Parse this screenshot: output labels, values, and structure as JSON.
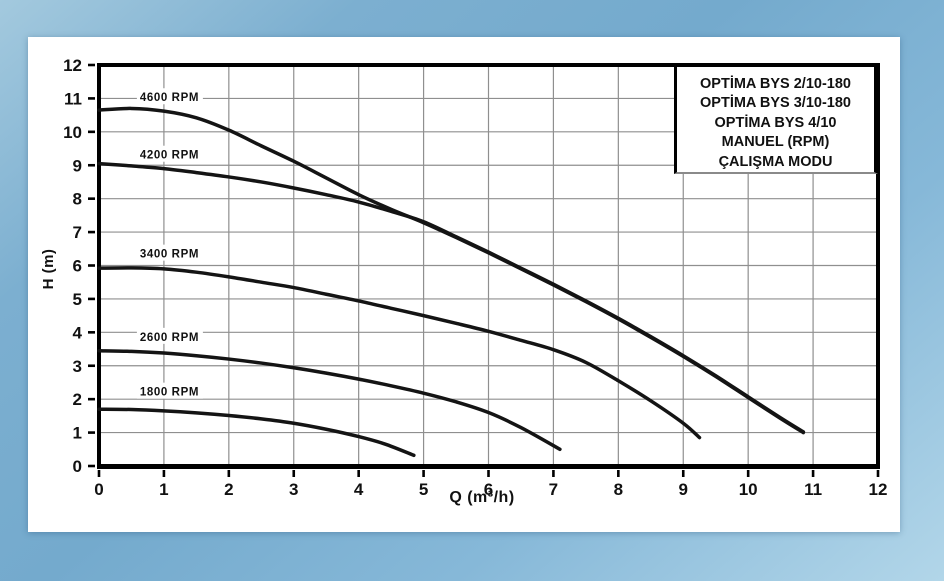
{
  "legend": {
    "lines": [
      "OPTİMA BYS 2/10-180",
      "OPTİMA BYS 3/10-180",
      "OPTİMA BYS 4/10",
      "MANUEL (RPM)",
      "ÇALIŞMA MODU"
    ]
  },
  "chart_data": {
    "type": "line",
    "title": "",
    "xlabel": "Q (m³/h)",
    "ylabel": "H (m)",
    "xlim": [
      0,
      12
    ],
    "ylim": [
      0,
      12
    ],
    "x_ticks": [
      0,
      1,
      2,
      3,
      4,
      5,
      6,
      7,
      8,
      9,
      10,
      11,
      12
    ],
    "y_ticks": [
      0,
      1,
      2,
      3,
      4,
      5,
      6,
      7,
      8,
      9,
      10,
      11,
      12
    ],
    "grid": true,
    "legend_position": "top-right",
    "colors": {
      "curve": "#141414",
      "grid": "#8f8f8f",
      "axis": "#000000",
      "label_bg": "#ffffff"
    },
    "series": [
      {
        "name": "4600 RPM",
        "label_at": {
          "q": 0.63,
          "h": 11.05
        },
        "points": [
          [
            0,
            10.65
          ],
          [
            0.5,
            10.7
          ],
          [
            1,
            10.62
          ],
          [
            1.5,
            10.42
          ],
          [
            2,
            10.05
          ],
          [
            2.5,
            9.58
          ],
          [
            3,
            9.12
          ],
          [
            3.5,
            8.62
          ],
          [
            4,
            8.12
          ],
          [
            4.5,
            7.68
          ],
          [
            5,
            7.28
          ],
          [
            5.5,
            6.84
          ],
          [
            6,
            6.38
          ],
          [
            6.5,
            5.9
          ],
          [
            7,
            5.42
          ],
          [
            7.5,
            4.92
          ],
          [
            8,
            4.4
          ],
          [
            8.5,
            3.85
          ],
          [
            9,
            3.28
          ],
          [
            9.5,
            2.68
          ],
          [
            10,
            2.05
          ],
          [
            10.5,
            1.42
          ],
          [
            10.85,
            1.0
          ]
        ]
      },
      {
        "name": "4200 RPM",
        "label_at": {
          "q": 0.63,
          "h": 9.33
        },
        "points": [
          [
            0,
            9.05
          ],
          [
            0.5,
            8.98
          ],
          [
            1,
            8.9
          ],
          [
            1.5,
            8.78
          ],
          [
            2,
            8.65
          ],
          [
            2.5,
            8.5
          ],
          [
            3,
            8.32
          ],
          [
            3.5,
            8.12
          ],
          [
            4,
            7.9
          ],
          [
            4.5,
            7.62
          ],
          [
            5,
            7.31
          ],
          [
            5.5,
            6.86
          ],
          [
            6,
            6.4
          ],
          [
            6.5,
            5.92
          ],
          [
            7,
            5.44
          ],
          [
            7.5,
            4.94
          ],
          [
            8,
            4.42
          ],
          [
            8.5,
            3.87
          ],
          [
            9,
            3.3
          ],
          [
            9.5,
            2.7
          ],
          [
            10,
            2.07
          ],
          [
            10.5,
            1.44
          ],
          [
            10.85,
            1.02
          ]
        ]
      },
      {
        "name": "3400 RPM",
        "label_at": {
          "q": 0.63,
          "h": 6.37
        },
        "points": [
          [
            0,
            5.92
          ],
          [
            0.5,
            5.93
          ],
          [
            1,
            5.9
          ],
          [
            1.5,
            5.8
          ],
          [
            2,
            5.66
          ],
          [
            2.5,
            5.5
          ],
          [
            3,
            5.34
          ],
          [
            3.5,
            5.14
          ],
          [
            4,
            4.94
          ],
          [
            4.5,
            4.72
          ],
          [
            5,
            4.5
          ],
          [
            5.5,
            4.27
          ],
          [
            6,
            4.03
          ],
          [
            6.5,
            3.76
          ],
          [
            7,
            3.48
          ],
          [
            7.5,
            3.1
          ],
          [
            8,
            2.55
          ],
          [
            8.5,
            1.95
          ],
          [
            9,
            1.28
          ],
          [
            9.25,
            0.85
          ]
        ]
      },
      {
        "name": "2600 RPM",
        "label_at": {
          "q": 0.63,
          "h": 3.88
        },
        "points": [
          [
            0,
            3.45
          ],
          [
            0.5,
            3.43
          ],
          [
            1,
            3.38
          ],
          [
            1.5,
            3.3
          ],
          [
            2,
            3.2
          ],
          [
            2.5,
            3.08
          ],
          [
            3,
            2.94
          ],
          [
            3.5,
            2.78
          ],
          [
            4,
            2.6
          ],
          [
            4.5,
            2.4
          ],
          [
            5,
            2.18
          ],
          [
            5.5,
            1.92
          ],
          [
            6,
            1.6
          ],
          [
            6.5,
            1.15
          ],
          [
            7.1,
            0.5
          ]
        ]
      },
      {
        "name": "1800 RPM",
        "label_at": {
          "q": 0.63,
          "h": 2.24
        },
        "points": [
          [
            0,
            1.7
          ],
          [
            0.5,
            1.69
          ],
          [
            1,
            1.65
          ],
          [
            1.5,
            1.59
          ],
          [
            2,
            1.51
          ],
          [
            2.5,
            1.41
          ],
          [
            3,
            1.28
          ],
          [
            3.5,
            1.1
          ],
          [
            4,
            0.88
          ],
          [
            4.4,
            0.66
          ],
          [
            4.85,
            0.32
          ]
        ]
      }
    ]
  }
}
